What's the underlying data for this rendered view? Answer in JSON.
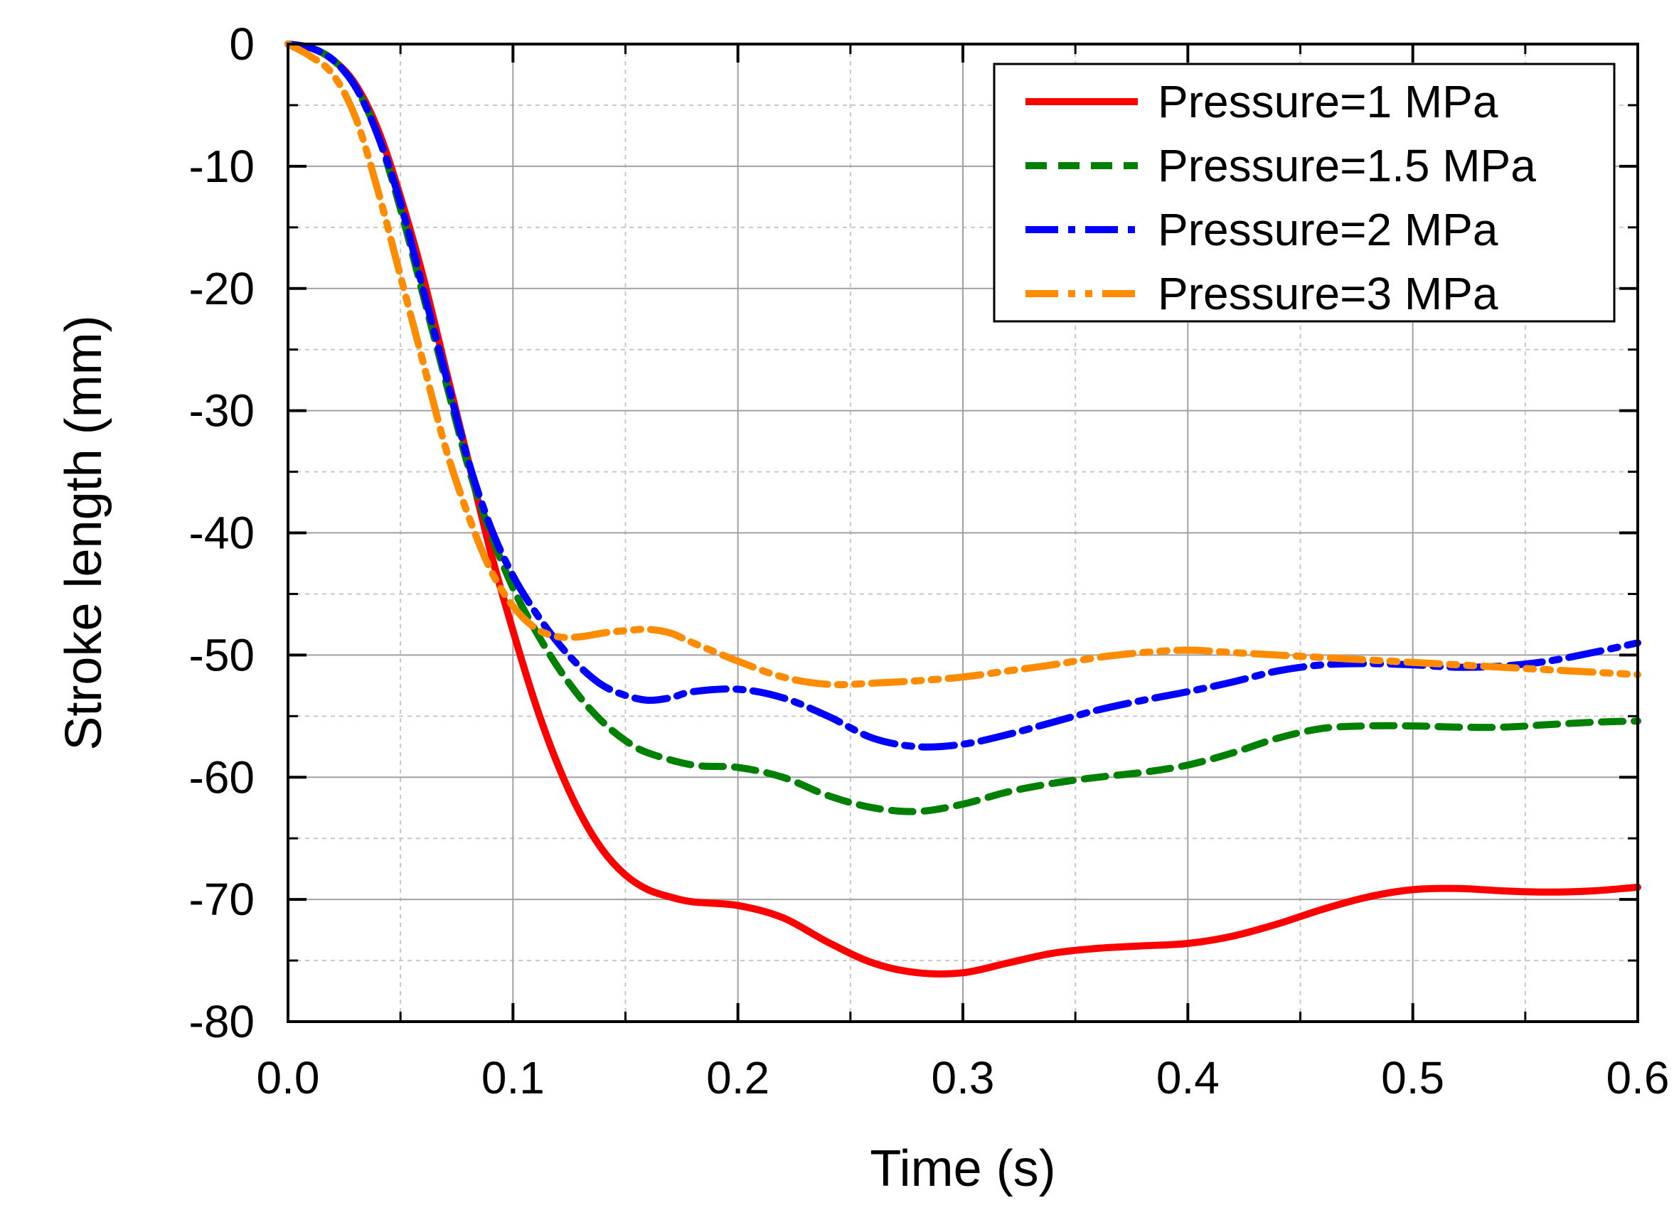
{
  "chart_data": {
    "type": "line",
    "title": "",
    "xlabel": "Time (s)",
    "ylabel": "Stroke length (mm)",
    "xlim": [
      0,
      0.6
    ],
    "ylim": [
      -80,
      0
    ],
    "xticks": [
      0.0,
      0.1,
      0.2,
      0.3,
      0.4,
      0.5,
      0.6
    ],
    "xtick_labels": [
      "0.0",
      "0.1",
      "0.2",
      "0.3",
      "0.4",
      "0.5",
      "0.6"
    ],
    "yticks": [
      0,
      -10,
      -20,
      -30,
      -40,
      -50,
      -60,
      -70,
      -80
    ],
    "ytick_labels": [
      "0",
      "-10",
      "-20",
      "-30",
      "-40",
      "-50",
      "-60",
      "-70",
      "-80"
    ],
    "grid": true,
    "legend_position": "top-right",
    "series": [
      {
        "name": "Pressure=1 MPa",
        "color": "#ff0000",
        "style": "solid",
        "points": [
          [
            0,
            0
          ],
          [
            0.01,
            -0.3
          ],
          [
            0.02,
            -1.3
          ],
          [
            0.03,
            -3.3
          ],
          [
            0.04,
            -7
          ],
          [
            0.05,
            -12.5
          ],
          [
            0.06,
            -19
          ],
          [
            0.07,
            -26.5
          ],
          [
            0.08,
            -34
          ],
          [
            0.09,
            -41.5
          ],
          [
            0.1,
            -48
          ],
          [
            0.11,
            -54
          ],
          [
            0.12,
            -59
          ],
          [
            0.13,
            -63
          ],
          [
            0.14,
            -66
          ],
          [
            0.15,
            -68
          ],
          [
            0.16,
            -69.2
          ],
          [
            0.17,
            -69.8
          ],
          [
            0.18,
            -70.2
          ],
          [
            0.2,
            -70.5
          ],
          [
            0.22,
            -71.5
          ],
          [
            0.24,
            -73.5
          ],
          [
            0.26,
            -75.2
          ],
          [
            0.28,
            -76
          ],
          [
            0.3,
            -76
          ],
          [
            0.32,
            -75.2
          ],
          [
            0.34,
            -74.4
          ],
          [
            0.36,
            -74
          ],
          [
            0.38,
            -73.8
          ],
          [
            0.4,
            -73.6
          ],
          [
            0.42,
            -73
          ],
          [
            0.44,
            -72
          ],
          [
            0.46,
            -70.8
          ],
          [
            0.48,
            -69.8
          ],
          [
            0.5,
            -69.2
          ],
          [
            0.52,
            -69.1
          ],
          [
            0.54,
            -69.3
          ],
          [
            0.56,
            -69.4
          ],
          [
            0.58,
            -69.3
          ],
          [
            0.6,
            -69
          ]
        ]
      },
      {
        "name": "Pressure=1.5 MPa",
        "color": "#008000",
        "style": "dashed",
        "points": [
          [
            0,
            0
          ],
          [
            0.01,
            -0.3
          ],
          [
            0.02,
            -1.3
          ],
          [
            0.03,
            -3.5
          ],
          [
            0.04,
            -7.5
          ],
          [
            0.05,
            -13.5
          ],
          [
            0.06,
            -20.5
          ],
          [
            0.07,
            -27.5
          ],
          [
            0.08,
            -34.5
          ],
          [
            0.09,
            -40
          ],
          [
            0.1,
            -44.5
          ],
          [
            0.11,
            -48
          ],
          [
            0.12,
            -51
          ],
          [
            0.13,
            -53.5
          ],
          [
            0.14,
            -55.5
          ],
          [
            0.15,
            -57
          ],
          [
            0.16,
            -58
          ],
          [
            0.18,
            -59
          ],
          [
            0.2,
            -59.2
          ],
          [
            0.22,
            -60
          ],
          [
            0.24,
            -61.5
          ],
          [
            0.26,
            -62.5
          ],
          [
            0.28,
            -62.8
          ],
          [
            0.3,
            -62.2
          ],
          [
            0.32,
            -61.2
          ],
          [
            0.34,
            -60.5
          ],
          [
            0.36,
            -60
          ],
          [
            0.38,
            -59.6
          ],
          [
            0.4,
            -59
          ],
          [
            0.42,
            -58
          ],
          [
            0.44,
            -56.8
          ],
          [
            0.46,
            -56
          ],
          [
            0.48,
            -55.8
          ],
          [
            0.5,
            -55.8
          ],
          [
            0.52,
            -55.9
          ],
          [
            0.54,
            -55.9
          ],
          [
            0.56,
            -55.7
          ],
          [
            0.58,
            -55.5
          ],
          [
            0.6,
            -55.4
          ]
        ]
      },
      {
        "name": "Pressure=2 MPa",
        "color": "#0000ff",
        "style": "dashdot",
        "points": [
          [
            0,
            0
          ],
          [
            0.01,
            -0.3
          ],
          [
            0.02,
            -1.3
          ],
          [
            0.03,
            -3.5
          ],
          [
            0.04,
            -7.5
          ],
          [
            0.05,
            -13
          ],
          [
            0.06,
            -20
          ],
          [
            0.07,
            -27
          ],
          [
            0.08,
            -34
          ],
          [
            0.09,
            -39.5
          ],
          [
            0.1,
            -43.5
          ],
          [
            0.11,
            -46.5
          ],
          [
            0.12,
            -49
          ],
          [
            0.13,
            -51
          ],
          [
            0.14,
            -52.5
          ],
          [
            0.15,
            -53.3
          ],
          [
            0.16,
            -53.7
          ],
          [
            0.17,
            -53.5
          ],
          [
            0.18,
            -53
          ],
          [
            0.2,
            -52.8
          ],
          [
            0.22,
            -53.5
          ],
          [
            0.24,
            -55
          ],
          [
            0.26,
            -56.8
          ],
          [
            0.28,
            -57.5
          ],
          [
            0.3,
            -57.3
          ],
          [
            0.32,
            -56.5
          ],
          [
            0.34,
            -55.5
          ],
          [
            0.36,
            -54.5
          ],
          [
            0.38,
            -53.7
          ],
          [
            0.4,
            -53
          ],
          [
            0.42,
            -52.2
          ],
          [
            0.44,
            -51.3
          ],
          [
            0.46,
            -50.8
          ],
          [
            0.48,
            -50.7
          ],
          [
            0.5,
            -50.8
          ],
          [
            0.52,
            -51
          ],
          [
            0.54,
            -50.9
          ],
          [
            0.56,
            -50.5
          ],
          [
            0.58,
            -49.8
          ],
          [
            0.6,
            -49
          ]
        ]
      },
      {
        "name": "Pressure=3 MPa",
        "color": "#ff8c00",
        "style": "dashdotdot",
        "points": [
          [
            0,
            0
          ],
          [
            0.01,
            -1
          ],
          [
            0.02,
            -2.5
          ],
          [
            0.03,
            -6
          ],
          [
            0.04,
            -12
          ],
          [
            0.05,
            -19
          ],
          [
            0.06,
            -26
          ],
          [
            0.07,
            -33
          ],
          [
            0.08,
            -38.5
          ],
          [
            0.09,
            -43
          ],
          [
            0.1,
            -46
          ],
          [
            0.11,
            -47.8
          ],
          [
            0.12,
            -48.5
          ],
          [
            0.13,
            -48.5
          ],
          [
            0.14,
            -48.2
          ],
          [
            0.15,
            -48
          ],
          [
            0.16,
            -47.9
          ],
          [
            0.17,
            -48.2
          ],
          [
            0.18,
            -49
          ],
          [
            0.2,
            -50.5
          ],
          [
            0.22,
            -51.8
          ],
          [
            0.24,
            -52.4
          ],
          [
            0.26,
            -52.3
          ],
          [
            0.28,
            -52.1
          ],
          [
            0.3,
            -51.8
          ],
          [
            0.32,
            -51.3
          ],
          [
            0.34,
            -50.8
          ],
          [
            0.36,
            -50.2
          ],
          [
            0.38,
            -49.8
          ],
          [
            0.4,
            -49.6
          ],
          [
            0.42,
            -49.8
          ],
          [
            0.44,
            -50
          ],
          [
            0.46,
            -50.2
          ],
          [
            0.48,
            -50.4
          ],
          [
            0.5,
            -50.6
          ],
          [
            0.52,
            -50.8
          ],
          [
            0.54,
            -51
          ],
          [
            0.56,
            -51.2
          ],
          [
            0.58,
            -51.4
          ],
          [
            0.6,
            -51.6
          ]
        ]
      }
    ]
  }
}
